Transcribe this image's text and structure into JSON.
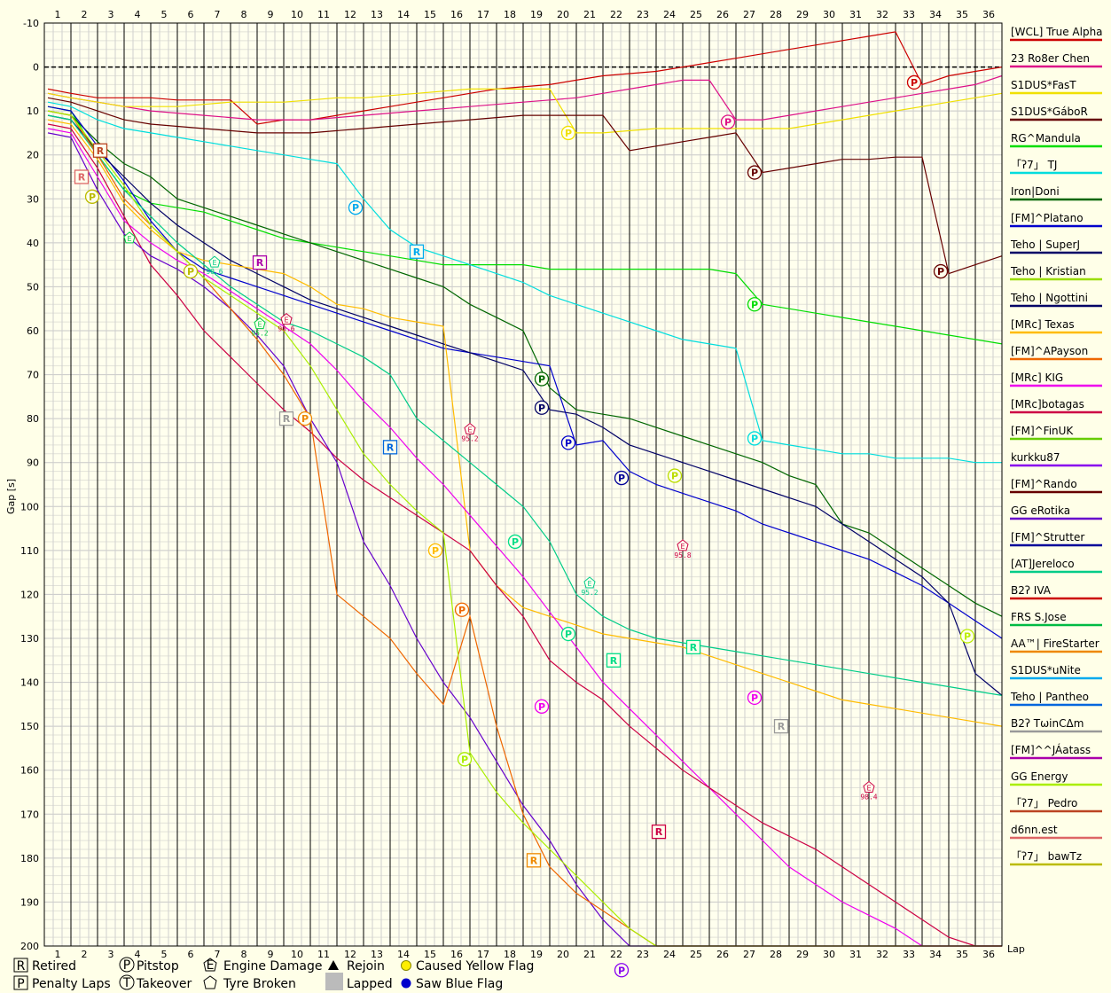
{
  "chart_data": {
    "type": "line",
    "xlabel": "Lap",
    "ylabel": "Gap [s]",
    "x": [
      1,
      2,
      3,
      4,
      5,
      6,
      7,
      8,
      9,
      10,
      11,
      12,
      13,
      14,
      15,
      16,
      17,
      18,
      19,
      20,
      21,
      22,
      23,
      24,
      25,
      26,
      27,
      28,
      29,
      30,
      31,
      32,
      33,
      34,
      35,
      36
    ],
    "ylim": [
      -10,
      200
    ],
    "y_inverted": true,
    "yticks": [
      -10,
      0,
      10,
      20,
      30,
      40,
      50,
      60,
      70,
      80,
      90,
      100,
      110,
      120,
      130,
      140,
      150,
      160,
      170,
      180,
      190,
      200
    ],
    "grid": true,
    "legend_position": "right",
    "series": [
      {
        "name": "[WCL] True Alpha",
        "color": "#cc0000",
        "values": [
          6,
          7,
          7,
          7,
          7.5,
          7.5,
          7.5,
          13,
          12,
          12,
          11,
          10,
          9,
          8,
          7,
          6,
          5,
          4.5,
          4,
          3,
          2,
          1.5,
          1,
          0,
          -1,
          -2,
          -3,
          -4,
          -5,
          -6,
          -7,
          -8,
          4,
          2,
          1,
          0
        ]
      },
      {
        "name": "23 Ro8er Chen",
        "color": "#dd1188",
        "values": [
          7,
          8,
          9,
          10,
          10.5,
          11,
          11.5,
          12,
          12,
          12,
          11.5,
          11,
          10.5,
          10,
          9.5,
          9,
          8.5,
          8,
          7.5,
          7,
          6,
          5,
          4,
          3,
          3,
          12,
          12,
          11,
          10,
          9,
          8,
          7,
          6,
          5,
          4,
          2
        ]
      },
      {
        "name": "S1DUS*FasT",
        "color": "#f0e000",
        "values": [
          7,
          8,
          9,
          9,
          9,
          8.5,
          8,
          8,
          8,
          7.5,
          7,
          7,
          6.5,
          6,
          5.5,
          5,
          5,
          5,
          5,
          15,
          15,
          14.5,
          14,
          14,
          14,
          14,
          14,
          14,
          13,
          12,
          11,
          10,
          9,
          8,
          7,
          6
        ]
      },
      {
        "name": "S1DUS*GáboR",
        "color": "#660000",
        "values": [
          8,
          10,
          12,
          13,
          13.5,
          14,
          14.5,
          15,
          15,
          15,
          14.5,
          14,
          13.5,
          13,
          12.5,
          12,
          11.5,
          11,
          11,
          11,
          11,
          19,
          18,
          17,
          16,
          15,
          24,
          23,
          22,
          21,
          21,
          20.5,
          20.5,
          47,
          45,
          43
        ]
      },
      {
        "name": "RG^Mandula",
        "color": "#00dd00",
        "values": [
          10,
          20,
          28,
          31,
          32,
          33,
          35,
          37,
          39,
          40,
          41,
          42,
          43,
          44,
          45,
          45,
          45,
          45,
          46,
          46,
          46,
          46,
          46,
          46,
          46,
          47,
          54,
          55,
          56,
          57,
          58,
          59,
          60,
          61,
          62,
          63
        ]
      },
      {
        "name": "「ʔ7」 TJ",
        "color": "#00dddd",
        "values": [
          9,
          12,
          14,
          15,
          16,
          17,
          18,
          19,
          20,
          21,
          22,
          30,
          37,
          41,
          43,
          45,
          47,
          49,
          52,
          54,
          56,
          58,
          60,
          62,
          63,
          64,
          85,
          86,
          87,
          88,
          88,
          89,
          89,
          89,
          90,
          90
        ]
      },
      {
        "name": "Iron|Doni",
        "color": "#006600",
        "values": [
          11,
          17,
          22,
          25,
          30,
          32,
          34,
          36,
          38,
          40,
          42,
          44,
          46,
          48,
          50,
          54,
          57,
          60,
          73,
          78,
          79,
          80,
          82,
          84,
          86,
          88,
          90,
          93,
          95,
          104,
          106,
          110,
          114,
          118,
          122,
          125
        ]
      },
      {
        "name": "[FM]^Platano",
        "color": "#0000cc",
        "values": [
          10,
          18,
          26,
          35,
          42,
          46,
          48,
          50,
          52,
          54,
          56,
          58,
          60,
          62,
          64,
          65,
          66,
          67,
          68,
          86,
          85,
          92,
          95,
          97,
          99,
          101,
          104,
          106,
          108,
          110,
          112,
          115,
          118,
          122,
          126,
          130
        ]
      },
      {
        "name": "Teho | SuperJ",
        "color": "#000066",
        "values": [
          12,
          19,
          25,
          31,
          36,
          40,
          44,
          47,
          50,
          53,
          55,
          57,
          59,
          61,
          63,
          65,
          67,
          69,
          78,
          79,
          82,
          86,
          88,
          90,
          92,
          94,
          96,
          98,
          100,
          104,
          108,
          112,
          116,
          122,
          138,
          143
        ]
      },
      {
        "name": "[MRc] Texas",
        "color": "#ffbb00",
        "values": [
          13,
          21,
          31,
          37,
          42,
          44,
          45,
          46,
          47,
          50,
          54,
          55,
          57,
          58,
          59,
          110,
          118,
          123,
          125,
          127,
          129,
          130,
          131,
          132,
          134,
          136,
          138,
          140,
          142,
          144,
          145,
          146,
          147,
          148,
          149,
          150
        ]
      },
      {
        "name": "[MRc] KIG",
        "color": "#ee00ee",
        "values": [
          15,
          25,
          35,
          40,
          44,
          47,
          51,
          55,
          59,
          63,
          69,
          76,
          82,
          89,
          95,
          102,
          109,
          116,
          124,
          132,
          140,
          146,
          152,
          158,
          164,
          170,
          176,
          182,
          186,
          190,
          193,
          196,
          200,
          200,
          200,
          200
        ]
      },
      {
        "name": "[MRc]botagas",
        "color": "#cc0044",
        "values": [
          14,
          23,
          34,
          45,
          52,
          60,
          66,
          72,
          78,
          83,
          89,
          94,
          98,
          102,
          106,
          110,
          118,
          125,
          135,
          140,
          144,
          150,
          155,
          160,
          164,
          168,
          172,
          175,
          178,
          182,
          186,
          190,
          194,
          198,
          200,
          200
        ]
      },
      {
        "name": "GG eRotika",
        "color": "#6600cc",
        "values": [
          16,
          28,
          38,
          43,
          46,
          50,
          55,
          61,
          68,
          80,
          90,
          108,
          118,
          130,
          140,
          148,
          158,
          168,
          176,
          186,
          194,
          200,
          200,
          200,
          200,
          200,
          200,
          200,
          200,
          200,
          200,
          200,
          200,
          200,
          200,
          200
        ]
      },
      {
        "name": "[AT]Jereloco",
        "color": "#00cc88",
        "values": [
          12,
          20,
          28,
          34,
          40,
          45,
          50,
          54,
          58,
          60,
          63,
          66,
          70,
          80,
          85,
          90,
          95,
          100,
          108,
          120,
          125,
          128,
          130,
          131,
          132,
          133,
          134,
          135,
          136,
          137,
          138,
          139,
          140,
          141,
          142,
          143
        ]
      },
      {
        "name": "AA™| FireStarter",
        "color": "#ee6600",
        "values": [
          11,
          20,
          30,
          36,
          42,
          48,
          55,
          62,
          70,
          80,
          120,
          125,
          130,
          138,
          145,
          125,
          150,
          170,
          182,
          188,
          192,
          196,
          200,
          200,
          200,
          200,
          200,
          200,
          200,
          200,
          200,
          200,
          200,
          200,
          200,
          200
        ]
      },
      {
        "name": "GG Energy",
        "color": "#aaee00",
        "values": [
          11,
          19,
          27,
          36,
          42,
          48,
          52,
          56,
          60,
          68,
          78,
          88,
          95,
          101,
          106,
          156,
          165,
          172,
          178,
          184,
          190,
          196,
          200,
          200,
          200,
          200,
          200,
          200,
          200,
          200,
          200,
          200,
          200,
          200,
          200,
          200
        ]
      }
    ]
  },
  "y_axis_label": "Gap [s]",
  "x_axis_label": "Lap",
  "legend": [
    {
      "name": "[WCL] True Alpha",
      "color": "#cc0000"
    },
    {
      "name": "23 Ro8er Chen",
      "color": "#dd1188"
    },
    {
      "name": "S1DUS*FasT",
      "color": "#f0e000"
    },
    {
      "name": "S1DUS*GáboR",
      "color": "#660000"
    },
    {
      "name": "RG^Mandula",
      "color": "#00dd00"
    },
    {
      "name": "「ʔ7」 TJ",
      "color": "#00dddd"
    },
    {
      "name": "Iron|Doni",
      "color": "#006600"
    },
    {
      "name": "[FM]^Platano",
      "color": "#0000cc"
    },
    {
      "name": "Teho | SuperJ",
      "color": "#000066"
    },
    {
      "name": "Teho | Kristian",
      "color": "#99dd00"
    },
    {
      "name": "Teho | Ngottini",
      "color": "#000066"
    },
    {
      "name": "[MRc] Texas",
      "color": "#ffbb00"
    },
    {
      "name": "[FM]^APayson",
      "color": "#ee6600"
    },
    {
      "name": "[MRc] KIG",
      "color": "#ee00ee"
    },
    {
      "name": "[MRc]botagas",
      "color": "#cc0044"
    },
    {
      "name": "[FM]^FinUK",
      "color": "#66cc00"
    },
    {
      "name": "kurkku87",
      "color": "#8800ee"
    },
    {
      "name": "[FM]^Rando",
      "color": "#660000"
    },
    {
      "name": "GG eRotika",
      "color": "#6600cc"
    },
    {
      "name": "[FM]^Strutter",
      "color": "#000099"
    },
    {
      "name": "[AT]Jereloco",
      "color": "#00cc88"
    },
    {
      "name": "B2ʔ IVA",
      "color": "#cc0000"
    },
    {
      "name": "FRS S.Jose",
      "color": "#00bb44"
    },
    {
      "name": "AA™| FireStarter",
      "color": "#ee8800"
    },
    {
      "name": "S1DUS*uNite",
      "color": "#00aaee"
    },
    {
      "name": "Teho | Pantheo",
      "color": "#0066dd"
    },
    {
      "name": "B2ʔ TωinCΔm",
      "color": "#999999"
    },
    {
      "name": "[FM]^^JÁatass",
      "color": "#aa00aa"
    },
    {
      "name": "GG Energy",
      "color": "#aaee00"
    },
    {
      "name": "「ʔ7」 Pedro",
      "color": "#bb4422"
    },
    {
      "name": "d6nn.est",
      "color": "#dd6666"
    },
    {
      "name": "「ʔ7」 bawTz",
      "color": "#bbbb00"
    }
  ],
  "key": {
    "retired_symbol": "R",
    "retired": "Retired",
    "penalty_symbol": "P",
    "penalty": "Penalty Laps",
    "pitstop_symbol": "P",
    "pitstop": "Pitstop",
    "takeover_symbol": "T",
    "takeover": "Takeover",
    "engine_symbol": "E",
    "engine": "Engine Damage",
    "tyre": "Tyre Broken",
    "rejoin": "Rejoin",
    "lapped": "Lapped",
    "yellow": "Caused Yellow Flag",
    "blue": "Saw Blue Flag"
  },
  "markers": [
    {
      "type": "R",
      "lap": 2.6,
      "gap": 19,
      "color": "#bb4422"
    },
    {
      "type": "R",
      "lap": 1.9,
      "gap": 25,
      "color": "#dd6666"
    },
    {
      "type": "P",
      "lap": 2.3,
      "gap": 29.5,
      "color": "#bbbb00"
    },
    {
      "type": "P",
      "lap": 12.2,
      "gap": 32,
      "color": "#00aaee"
    },
    {
      "type": "R",
      "lap": 14.5,
      "gap": 42,
      "color": "#00aaee"
    },
    {
      "type": "R",
      "lap": 8.6,
      "gap": 44.5,
      "color": "#aa00aa"
    },
    {
      "type": "P",
      "lap": 6.0,
      "gap": 46.5,
      "color": "#bbbb00"
    },
    {
      "type": "R",
      "lap": 9.6,
      "gap": 80,
      "color": "#999999"
    },
    {
      "type": "P",
      "lap": 10.3,
      "gap": 80,
      "color": "#ee8800"
    },
    {
      "type": "R",
      "lap": 13.5,
      "gap": 86.5,
      "color": "#0066dd"
    },
    {
      "type": "P",
      "lap": 20.2,
      "gap": 15,
      "color": "#f0e000"
    },
    {
      "type": "P",
      "lap": 26.2,
      "gap": 12.5,
      "color": "#dd1188"
    },
    {
      "type": "P",
      "lap": 27.2,
      "gap": 24,
      "color": "#660000"
    },
    {
      "type": "P",
      "lap": 33.2,
      "gap": 3.5,
      "color": "#cc0000"
    },
    {
      "type": "P",
      "lap": 34.2,
      "gap": 46.5,
      "color": "#660000"
    },
    {
      "type": "P",
      "lap": 27.2,
      "gap": 54,
      "color": "#00dd00"
    },
    {
      "type": "P",
      "lap": 19.2,
      "gap": 71,
      "color": "#006600"
    },
    {
      "type": "P",
      "lap": 19.2,
      "gap": 77.5,
      "color": "#000066"
    },
    {
      "type": "P",
      "lap": 20.2,
      "gap": 85.5,
      "color": "#0000cc"
    },
    {
      "type": "P",
      "lap": 22.2,
      "gap": 93.5,
      "color": "#000099"
    },
    {
      "type": "P",
      "lap": 27.2,
      "gap": 84.5,
      "color": "#00dddd"
    },
    {
      "type": "P",
      "lap": 24.2,
      "gap": 93,
      "color": "#bbdd00"
    },
    {
      "type": "P",
      "lap": 15.2,
      "gap": 110,
      "color": "#ffbb00"
    },
    {
      "type": "P",
      "lap": 18.2,
      "gap": 108,
      "color": "#00dd88"
    },
    {
      "type": "P",
      "lap": 16.2,
      "gap": 123.5,
      "color": "#ee6600"
    },
    {
      "type": "P",
      "lap": 20.2,
      "gap": 129,
      "color": "#00dd88"
    },
    {
      "type": "R",
      "lap": 21.9,
      "gap": 135,
      "color": "#00dd88"
    },
    {
      "type": "R",
      "lap": 24.9,
      "gap": 132,
      "color": "#00dd88"
    },
    {
      "type": "P",
      "lap": 19.2,
      "gap": 145.5,
      "color": "#ee00ee"
    },
    {
      "type": "P",
      "lap": 27.2,
      "gap": 143.5,
      "color": "#ee00ee"
    },
    {
      "type": "R",
      "lap": 28.2,
      "gap": 150,
      "color": "#999999"
    },
    {
      "type": "P",
      "lap": 16.3,
      "gap": 157.5,
      "color": "#aaee00"
    },
    {
      "type": "R",
      "lap": 23.6,
      "gap": 174,
      "color": "#cc0044"
    },
    {
      "type": "R",
      "lap": 18.9,
      "gap": 180.5,
      "color": "#ee8800"
    },
    {
      "type": "P",
      "lap": 22.2,
      "gap": 205.5,
      "color": "#8800ee"
    },
    {
      "type": "P",
      "lap": 35.2,
      "gap": 129.5,
      "color": "#bbee00"
    }
  ],
  "engine_markers": [
    {
      "lap": 3.7,
      "gap": 39,
      "color": "#00cc44",
      "label": ""
    },
    {
      "lap": 6.9,
      "gap": 44.5,
      "color": "#00cc88",
      "label": "90.6"
    },
    {
      "lap": 8.6,
      "gap": 58.5,
      "color": "#00cc44",
      "label": "95.2"
    },
    {
      "lap": 9.6,
      "gap": 57.5,
      "color": "#cc0044",
      "label": "90.6"
    },
    {
      "lap": 16.5,
      "gap": 82.5,
      "color": "#cc0044",
      "label": "95.2"
    },
    {
      "lap": 21.0,
      "gap": 117.5,
      "color": "#00cc88",
      "label": "95.2"
    },
    {
      "lap": 24.5,
      "gap": 109,
      "color": "#cc0044",
      "label": "95.8"
    },
    {
      "lap": 31.5,
      "gap": 164,
      "color": "#cc0044",
      "label": "98.4"
    }
  ]
}
